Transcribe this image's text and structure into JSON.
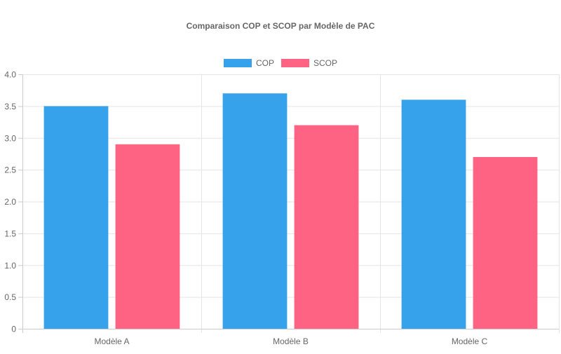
{
  "chart_data": {
    "type": "bar",
    "title": "Comparaison COP et SCOP par Modèle de PAC",
    "categories": [
      "Modèle A",
      "Modèle B",
      "Modèle C"
    ],
    "series": [
      {
        "name": "COP",
        "values": [
          3.5,
          3.7,
          3.6
        ],
        "color": "#36a2eb"
      },
      {
        "name": "SCOP",
        "values": [
          2.9,
          3.2,
          2.7
        ],
        "color": "#ff6384"
      }
    ],
    "ylim": [
      0,
      4
    ],
    "yticks": [
      "0",
      "0.5",
      "1.0",
      "1.5",
      "2.0",
      "2.5",
      "3.0",
      "3.5",
      "4.0"
    ],
    "grid": true,
    "legend": "top-center"
  }
}
